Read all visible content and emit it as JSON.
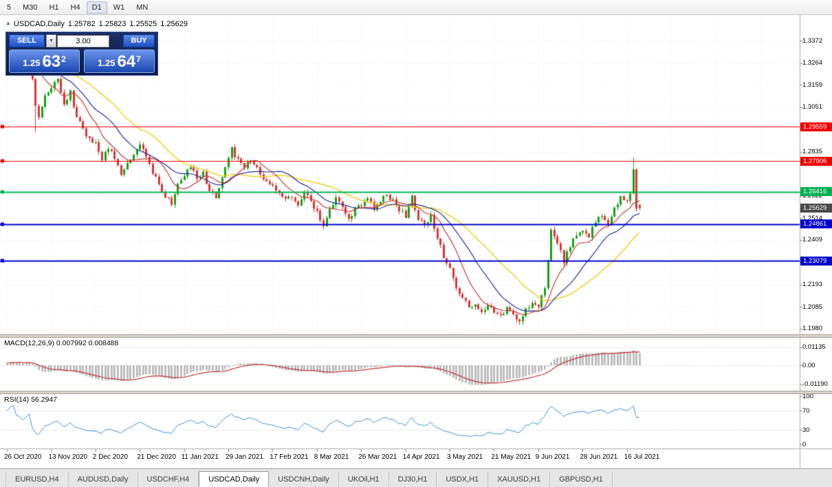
{
  "toolbar": {
    "timeframes": [
      {
        "label": "5",
        "active": false
      },
      {
        "label": "M30",
        "active": false
      },
      {
        "label": "H1",
        "active": false
      },
      {
        "label": "H4",
        "active": false
      },
      {
        "label": "D1",
        "active": true
      },
      {
        "label": "W1",
        "active": false
      },
      {
        "label": "MN",
        "active": false
      }
    ]
  },
  "header": {
    "collapse_marker": "▲",
    "symbol": "USDCAD,Daily",
    "open": "1.25782",
    "high": "1.25823",
    "low": "1.25525",
    "close": "1.25629"
  },
  "trade_panel": {
    "sell_label": "SELL",
    "buy_label": "BUY",
    "volume": "3.00",
    "spinner_icon": "▼",
    "sell_price": {
      "big": "1.25",
      "mid": "63",
      "sup": "2"
    },
    "buy_price": {
      "big": "1.25",
      "mid": "64",
      "sup": "7"
    }
  },
  "price_axis": {
    "labels": [
      {
        "text": "1.3372",
        "value": 1.3372
      },
      {
        "text": "1.3264",
        "value": 1.3264
      },
      {
        "text": "1.3159",
        "value": 1.3159
      },
      {
        "text": "1.3051",
        "value": 1.3051
      },
      {
        "text": "1.2835",
        "value": 1.2835
      },
      {
        "text": "1.2622",
        "value": 1.2622
      },
      {
        "text": "1.2514",
        "value": 1.2514
      },
      {
        "text": "1.2409",
        "value": 1.2409
      },
      {
        "text": "1.2193",
        "value": 1.2193
      },
      {
        "text": "1.2085",
        "value": 1.2085
      },
      {
        "text": "1.1980",
        "value": 1.198
      }
    ],
    "tags": [
      {
        "text": "1.29559",
        "value": 1.29559,
        "color": "#ee0000"
      },
      {
        "text": "1.27906",
        "value": 1.27906,
        "color": "#ee0000"
      },
      {
        "text": "1.26416",
        "value": 1.26416,
        "color": "#00b050"
      },
      {
        "text": "1.25629",
        "value": 1.25629,
        "color": "#4a4a4a"
      },
      {
        "text": "1.24861",
        "value": 1.24861,
        "color": "#0000cc"
      },
      {
        "text": "1.23079",
        "value": 1.23079,
        "color": "#0000cc"
      }
    ]
  },
  "macd_panel": {
    "label": "MACD(12,26,9) 0.007992 0.008488",
    "axis": [
      {
        "text": "0.01135",
        "value": 0.01135
      },
      {
        "text": "0.00",
        "value": 0
      },
      {
        "text": "-0.01190",
        "value": -0.0119
      }
    ]
  },
  "rsi_panel": {
    "label": "RSI(14) 56.2947",
    "axis": [
      {
        "text": "100",
        "value": 100
      },
      {
        "text": "70",
        "value": 70
      },
      {
        "text": "30",
        "value": 30
      },
      {
        "text": "0",
        "value": 0
      }
    ],
    "levels": [
      70,
      30
    ]
  },
  "tabbar": {
    "tabs": [
      "EURUSD,H4",
      "AUDUSD,Daily",
      "USDCHF,H4",
      "USDCAD,Daily",
      "USDCNH,Daily",
      "UKOil,H1",
      "DJ30,H1",
      "USDX,H1",
      "XAUUSD,H1",
      "GBPUSD,H1"
    ],
    "active": "USDCAD,Daily"
  },
  "chart_data": {
    "type": "candlestick",
    "symbol": "USDCAD",
    "timeframe": "Daily",
    "ylim": [
      1.195,
      1.343
    ],
    "x_labels": [
      "26 Oct 2020",
      "13 Nov 2020",
      "2 Dec 2020",
      "21 Dec 2020",
      "11 Jan 2021",
      "29 Jan 2021",
      "17 Feb 2021",
      "8 Mar 2021",
      "26 Mar 2021",
      "14 Apr 2021",
      "3 May 2021",
      "21 May 2021",
      "9 Jun 2021",
      "28 Jun 2021",
      "16 Jul 2021"
    ],
    "candles_per_label": 14,
    "num_candles": 201,
    "last": {
      "open": 1.25782,
      "high": 1.25823,
      "low": 1.25525,
      "close": 1.25629
    },
    "anchors": [
      [
        0,
        1.3275
      ],
      [
        2,
        1.333
      ],
      [
        5,
        1.3255
      ],
      [
        7,
        1.33
      ],
      [
        9,
        1.306
      ],
      [
        10,
        1.3
      ],
      [
        12,
        1.312
      ],
      [
        14,
        1.3135
      ],
      [
        16,
        1.319
      ],
      [
        18,
        1.306
      ],
      [
        20,
        1.312
      ],
      [
        22,
        1.3
      ],
      [
        24,
        1.295
      ],
      [
        26,
        1.289
      ],
      [
        28,
        1.288
      ],
      [
        30,
        1.28
      ],
      [
        32,
        1.286
      ],
      [
        34,
        1.28
      ],
      [
        36,
        1.273
      ],
      [
        38,
        1.277
      ],
      [
        40,
        1.283
      ],
      [
        42,
        1.2875
      ],
      [
        44,
        1.28
      ],
      [
        46,
        1.273
      ],
      [
        48,
        1.268
      ],
      [
        50,
        1.262
      ],
      [
        52,
        1.259
      ],
      [
        54,
        1.268
      ],
      [
        56,
        1.272
      ],
      [
        58,
        1.277
      ],
      [
        60,
        1.27
      ],
      [
        62,
        1.273
      ],
      [
        64,
        1.265
      ],
      [
        66,
        1.262
      ],
      [
        68,
        1.27
      ],
      [
        70,
        1.28
      ],
      [
        71,
        1.285
      ],
      [
        73,
        1.279
      ],
      [
        75,
        1.276
      ],
      [
        77,
        1.28
      ],
      [
        79,
        1.275
      ],
      [
        81,
        1.27
      ],
      [
        84,
        1.268
      ],
      [
        86,
        1.264
      ],
      [
        88,
        1.26
      ],
      [
        90,
        1.262
      ],
      [
        92,
        1.258
      ],
      [
        94,
        1.264
      ],
      [
        96,
        1.26
      ],
      [
        98,
        1.254
      ],
      [
        100,
        1.248
      ],
      [
        102,
        1.256
      ],
      [
        104,
        1.261
      ],
      [
        106,
        1.258
      ],
      [
        108,
        1.25
      ],
      [
        110,
        1.256
      ],
      [
        112,
        1.258
      ],
      [
        114,
        1.261
      ],
      [
        116,
        1.256
      ],
      [
        118,
        1.259
      ],
      [
        120,
        1.263
      ],
      [
        122,
        1.26
      ],
      [
        124,
        1.256
      ],
      [
        126,
        1.252
      ],
      [
        128,
        1.2615
      ],
      [
        130,
        1.25
      ],
      [
        132,
        1.248
      ],
      [
        134,
        1.252
      ],
      [
        136,
        1.242
      ],
      [
        138,
        1.233
      ],
      [
        140,
        1.228
      ],
      [
        142,
        1.218
      ],
      [
        144,
        1.213
      ],
      [
        146,
        1.208
      ],
      [
        148,
        1.211
      ],
      [
        150,
        1.206
      ],
      [
        152,
        1.21
      ],
      [
        154,
        1.207
      ],
      [
        156,
        1.204
      ],
      [
        158,
        1.208
      ],
      [
        160,
        1.205
      ],
      [
        162,
        1.202
      ],
      [
        164,
        1.207
      ],
      [
        166,
        1.211
      ],
      [
        168,
        1.209
      ],
      [
        170,
        1.217
      ],
      [
        172,
        1.246
      ],
      [
        174,
        1.24
      ],
      [
        176,
        1.231
      ],
      [
        178,
        1.238
      ],
      [
        180,
        1.244
      ],
      [
        182,
        1.246
      ],
      [
        184,
        1.242
      ],
      [
        186,
        1.25
      ],
      [
        188,
        1.253
      ],
      [
        190,
        1.248
      ],
      [
        192,
        1.256
      ],
      [
        194,
        1.262
      ],
      [
        196,
        1.259
      ],
      [
        197,
        1.264
      ],
      [
        198,
        1.276
      ],
      [
        199,
        1.256
      ],
      [
        200,
        1.25629
      ]
    ],
    "wick_overrides": [
      {
        "index": 9,
        "low": 1.2928
      },
      {
        "index": 198,
        "high": 1.2807
      }
    ],
    "hlines": [
      {
        "value": 1.29559,
        "color": "#ee0000",
        "width": 1
      },
      {
        "value": 1.27906,
        "color": "#ee0000",
        "width": 1
      },
      {
        "value": 1.26416,
        "color": "#00b050",
        "width": 2
      },
      {
        "value": 1.24861,
        "color": "#0000cc",
        "width": 2
      },
      {
        "value": 1.23079,
        "color": "#0000cc",
        "width": 2
      }
    ],
    "overlays": [
      {
        "name": "sma-fast",
        "period": 10,
        "color": "#c43939"
      },
      {
        "name": "sma-mid",
        "period": 20,
        "color": "#1e2e9e"
      },
      {
        "name": "sma-slow",
        "period": 34,
        "color": "#f0cf1f"
      }
    ],
    "indicators": [
      {
        "name": "MACD",
        "fast": 12,
        "slow": 26,
        "signal": 9,
        "current_macd": 0.007992,
        "current_signal": 0.008488
      },
      {
        "name": "RSI",
        "period": 14,
        "current": 56.2947
      }
    ]
  },
  "colors": {
    "up": "#16a016",
    "down": "#e03232",
    "background": "#ffffff",
    "grid": "#ebebeb",
    "macd_hist": "#bdbdbd",
    "macd_signal": "#c03030",
    "rsi_line": "#3f8fd4"
  }
}
